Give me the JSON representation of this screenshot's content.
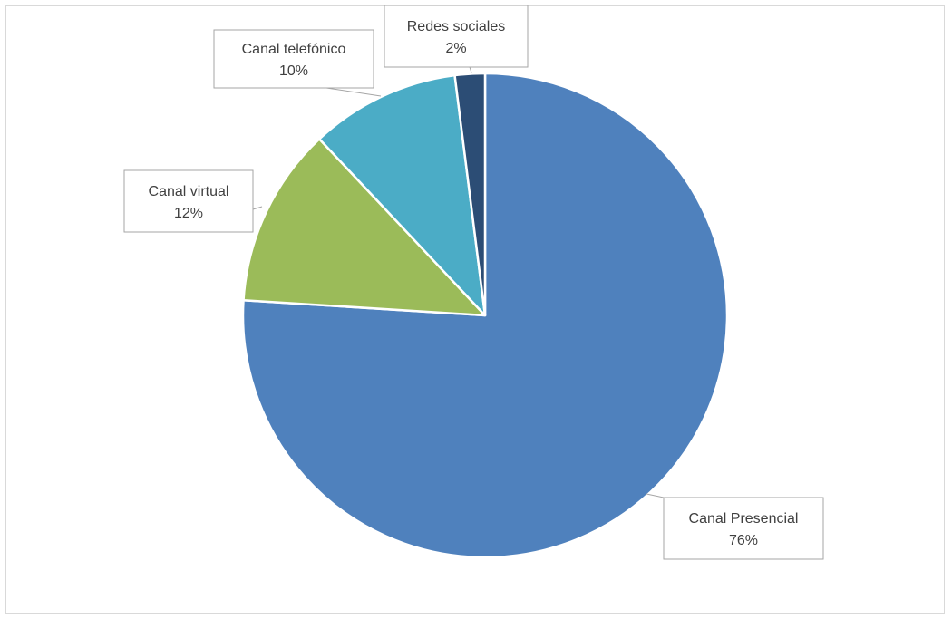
{
  "chart_data": {
    "type": "pie",
    "title": "",
    "start_angle_deg": 0,
    "direction": "clockwise",
    "legend": "none",
    "slices": [
      {
        "name": "Canal Presencial",
        "value": 76,
        "label_pct": "76%",
        "color": "#4f81bd"
      },
      {
        "name": "Canal virtual",
        "value": 12,
        "label_pct": "12%",
        "color": "#9bbb59"
      },
      {
        "name": "Canal telefónico",
        "value": 10,
        "label_pct": "10%",
        "color": "#4bacc6"
      },
      {
        "name": "Redes sociales",
        "value": 2,
        "label_pct": "2%",
        "color": "#2c4d75"
      }
    ]
  }
}
